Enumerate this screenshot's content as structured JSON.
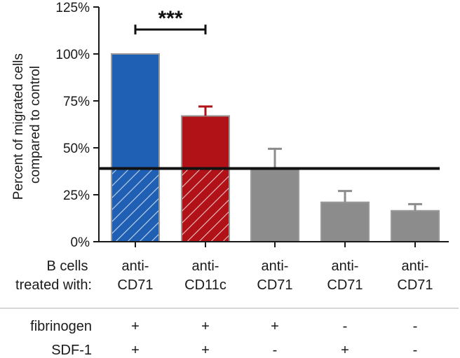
{
  "chart_data": {
    "type": "bar",
    "ylabel": "Percent of migrated cells compared to control",
    "ylabel_lines": [
      "Percent of migrated cells",
      "compared to control"
    ],
    "ylim": [
      0,
      125
    ],
    "yticks": [
      0,
      25,
      50,
      75,
      100,
      125
    ],
    "ytick_labels": [
      "0%",
      "25%",
      "50%",
      "75%",
      "100%",
      "125%"
    ],
    "categories": [
      "anti-CD71",
      "anti-CD11c",
      "anti-CD71",
      "anti-CD71",
      "anti-CD71"
    ],
    "category_lines": [
      [
        "anti-",
        "CD71"
      ],
      [
        "anti-",
        "CD11c"
      ],
      [
        "anti-",
        "CD71"
      ],
      [
        "anti-",
        "CD71"
      ],
      [
        "anti-",
        "CD71"
      ]
    ],
    "values": [
      100,
      67,
      39,
      21,
      16.5
    ],
    "error_upper": [
      0,
      5,
      10.5,
      6,
      3.5
    ],
    "colors": [
      "#1f5fb4",
      "#b01217",
      "#8c8c8c",
      "#8c8c8c",
      "#8c8c8c"
    ],
    "hatched_below": [
      true,
      true,
      false,
      false,
      false
    ],
    "baseline": 39,
    "significance": {
      "from": 0,
      "to": 1,
      "y": 113,
      "label": "***"
    },
    "x_header_lines": [
      "B cells",
      "treated with:"
    ],
    "conditions": [
      {
        "name": "fibrinogen",
        "values": [
          "+",
          "+",
          "+",
          "-",
          "-"
        ]
      },
      {
        "name": "SDF-1",
        "values": [
          "+",
          "+",
          "-",
          "+",
          "-"
        ]
      }
    ]
  }
}
